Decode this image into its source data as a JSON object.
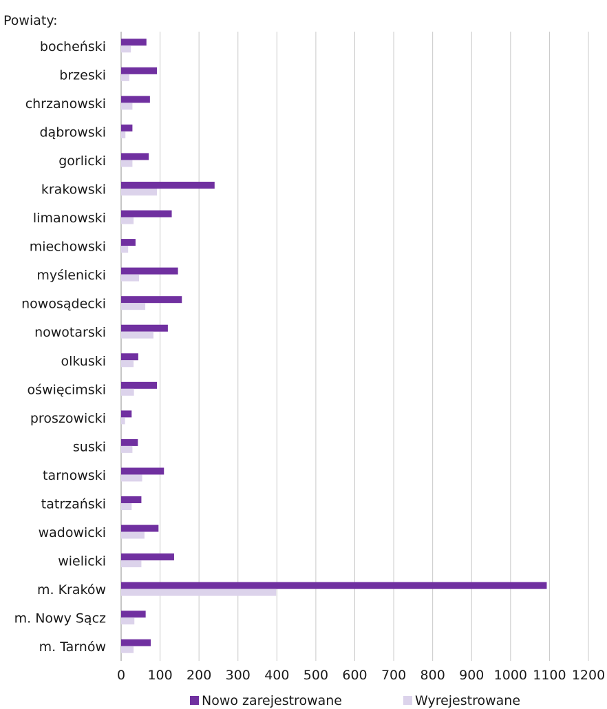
{
  "chart_data": {
    "type": "bar",
    "orientation": "horizontal",
    "title": "Powiaty:",
    "categories": [
      "bocheński",
      "brzeski",
      "chrzanowski",
      "dąbrowski",
      "gorlicki",
      "krakowski",
      "limanowski",
      "miechowski",
      "myślenicki",
      "nowosądecki",
      "nowotarski",
      "olkuski",
      "oświęcimski",
      "proszowicki",
      "suski",
      "tarnowski",
      "tatrzański",
      "wadowicki",
      "wielicki",
      "m. Kraków",
      "m. Nowy Sącz",
      "m. Tarnów"
    ],
    "series": [
      {
        "name": "Nowo zarejestrowane",
        "color": "#7030a0",
        "values": [
          65,
          92,
          74,
          29,
          71,
          240,
          130,
          37,
          146,
          156,
          120,
          44,
          92,
          27,
          43,
          110,
          52,
          96,
          136,
          1093,
          63,
          76
        ]
      },
      {
        "name": "Wyrejestrowane",
        "color": "#dcd3eb",
        "values": [
          25,
          21,
          29,
          11,
          29,
          92,
          32,
          18,
          46,
          62,
          83,
          32,
          33,
          10,
          29,
          54,
          27,
          60,
          52,
          398,
          34,
          32
        ]
      }
    ],
    "xlim": [
      0,
      1200
    ],
    "ticks": [
      0,
      100,
      200,
      300,
      400,
      500,
      600,
      700,
      800,
      900,
      1000,
      1100,
      1200
    ],
    "grid": true,
    "legend": "bottom"
  }
}
